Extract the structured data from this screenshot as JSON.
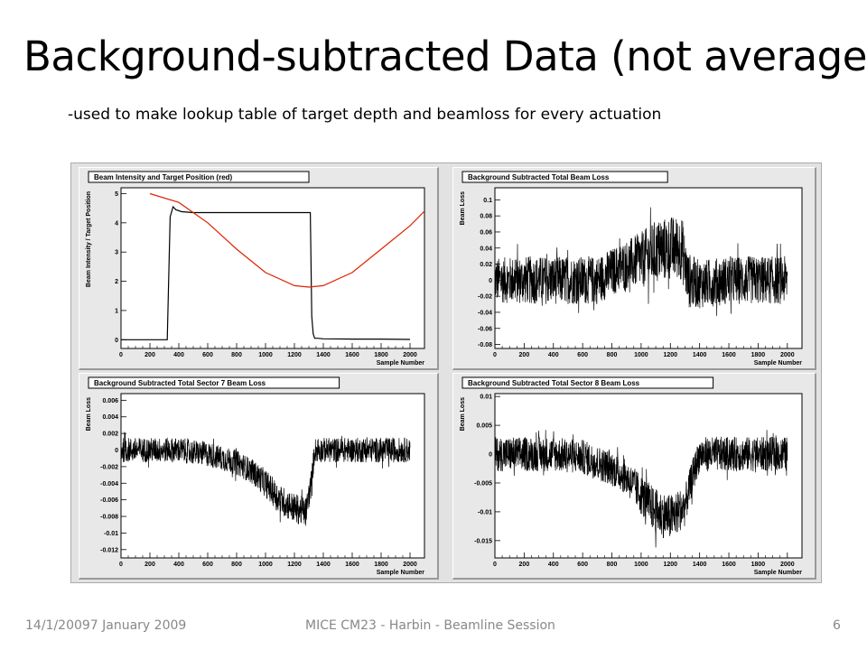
{
  "slide": {
    "title": "Background-subtracted Data (not averaged)",
    "subtitle": "-used to make lookup table of target depth and beamloss for every actuation",
    "footer_date": "14/1/20097 January 2009",
    "footer_session": "MICE CM23 - Harbin - Beamline Session",
    "page_number": "6"
  },
  "chart_data": [
    {
      "type": "line",
      "title": "Beam Intensity and Target Position (red)",
      "xlabel": "Sample Number",
      "ylabel": "Beam Intensity / Target Position",
      "xlim": [
        0,
        2100
      ],
      "ylim": [
        -0.3,
        5.2
      ],
      "xticks": [
        "0",
        "200",
        "400",
        "600",
        "800",
        "1000",
        "1200",
        "1400",
        "1600",
        "1800",
        "2000"
      ],
      "yticks": [
        "0",
        "1",
        "2",
        "3",
        "4",
        "5"
      ],
      "series": [
        {
          "color": "#000000",
          "x": [
            0,
            320,
            340,
            360,
            380,
            420,
            500,
            800,
            1100,
            1310,
            1320,
            1330,
            1340,
            1360,
            1400,
            1600,
            1800,
            2000
          ],
          "y": [
            0.0,
            0.0,
            4.2,
            4.55,
            4.45,
            4.38,
            4.35,
            4.35,
            4.35,
            4.35,
            0.8,
            0.2,
            0.05,
            0.05,
            0.03,
            0.02,
            0.02,
            0.01
          ]
        },
        {
          "color": "#dd2200",
          "x": [
            200,
            400,
            600,
            800,
            1000,
            1200,
            1300,
            1400,
            1600,
            1800,
            2000,
            2100
          ],
          "y": [
            5.0,
            4.7,
            4.0,
            3.1,
            2.3,
            1.85,
            1.8,
            1.85,
            2.3,
            3.1,
            3.9,
            4.4
          ]
        }
      ]
    },
    {
      "type": "line",
      "title": "Background Subtracted Total Beam Loss",
      "xlabel": "Sample Number",
      "ylabel": "Beam Loss",
      "xlim": [
        0,
        2100
      ],
      "ylim": [
        -0.085,
        0.115
      ],
      "xticks": [
        "0",
        "200",
        "400",
        "600",
        "800",
        "1000",
        "1200",
        "1400",
        "1600",
        "1800",
        "2000"
      ],
      "yticks": [
        "-0.08",
        "-0.06",
        "-0.04",
        "-0.02",
        "0",
        "0.02",
        "0.04",
        "0.06",
        "0.08",
        "0.1"
      ],
      "series": [
        {
          "color": "#000000",
          "x": [
            0,
            200,
            400,
            600,
            700,
            800,
            900,
            1000,
            1100,
            1200,
            1280,
            1320,
            1400,
            1600,
            1800,
            2000
          ],
          "y": [
            0.0,
            0.0,
            0.0,
            0.0,
            0.0,
            0.01,
            0.02,
            0.025,
            0.035,
            0.04,
            0.04,
            0.0,
            -0.005,
            0.0,
            0.0,
            0.0
          ],
          "spread": [
            0.028,
            0.03,
            0.03,
            0.03,
            0.03,
            0.03,
            0.03,
            0.035,
            0.04,
            0.04,
            0.04,
            0.035,
            0.03,
            0.03,
            0.03,
            0.03
          ]
        }
      ]
    },
    {
      "type": "line",
      "title": "Background Subtracted Total Sector 7 Beam Loss",
      "xlabel": "Sample Number",
      "ylabel": "Beam Loss",
      "xlim": [
        0,
        2100
      ],
      "ylim": [
        -0.013,
        0.0068
      ],
      "xticks": [
        "0",
        "200",
        "400",
        "600",
        "800",
        "1000",
        "1200",
        "1400",
        "1600",
        "1800",
        "2000"
      ],
      "yticks": [
        "-0.012",
        "-0.01",
        "-0.008",
        "-0.006",
        "-0.004",
        "-0.002",
        "0",
        "0.002",
        "0.004",
        "0.006"
      ],
      "series": [
        {
          "color": "#000000",
          "x": [
            0,
            200,
            400,
            600,
            700,
            800,
            900,
            1000,
            1100,
            1200,
            1280,
            1320,
            1340,
            1400,
            1600,
            1800,
            2000
          ],
          "y": [
            0.0,
            0.0,
            0.0,
            -0.0005,
            -0.001,
            -0.0015,
            -0.0025,
            -0.004,
            -0.006,
            -0.007,
            -0.0075,
            -0.0035,
            0.0,
            0.0,
            0.0,
            0.0,
            0.0
          ],
          "spread": [
            0.0015,
            0.0015,
            0.0015,
            0.0015,
            0.0015,
            0.0015,
            0.0015,
            0.0017,
            0.0018,
            0.0018,
            0.0018,
            0.0015,
            0.0015,
            0.0015,
            0.0015,
            0.0015,
            0.0015
          ]
        }
      ]
    },
    {
      "type": "line",
      "title": "Background Subtracted Total Sector 8 Beam Loss",
      "xlabel": "Sample Number",
      "ylabel": "Beam Loss",
      "xlim": [
        0,
        2100
      ],
      "ylim": [
        -0.018,
        0.0105
      ],
      "xticks": [
        "0",
        "200",
        "400",
        "600",
        "800",
        "1000",
        "1200",
        "1400",
        "1600",
        "1800",
        "2000"
      ],
      "yticks": [
        "-0.015",
        "-0.01",
        "-0.005",
        "0",
        "0.005",
        "0.01"
      ],
      "series": [
        {
          "color": "#000000",
          "x": [
            0,
            200,
            400,
            600,
            700,
            800,
            900,
            1000,
            1100,
            1200,
            1300,
            1350,
            1400,
            1600,
            1800,
            2000
          ],
          "y": [
            0.0,
            0.0,
            0.0,
            -0.0005,
            -0.0015,
            -0.0025,
            -0.004,
            -0.007,
            -0.01,
            -0.011,
            -0.009,
            -0.004,
            0.0,
            0.0,
            0.0,
            0.0
          ],
          "spread": [
            0.003,
            0.003,
            0.003,
            0.003,
            0.003,
            0.003,
            0.003,
            0.0035,
            0.004,
            0.004,
            0.0035,
            0.003,
            0.003,
            0.003,
            0.003,
            0.003
          ]
        }
      ]
    }
  ]
}
